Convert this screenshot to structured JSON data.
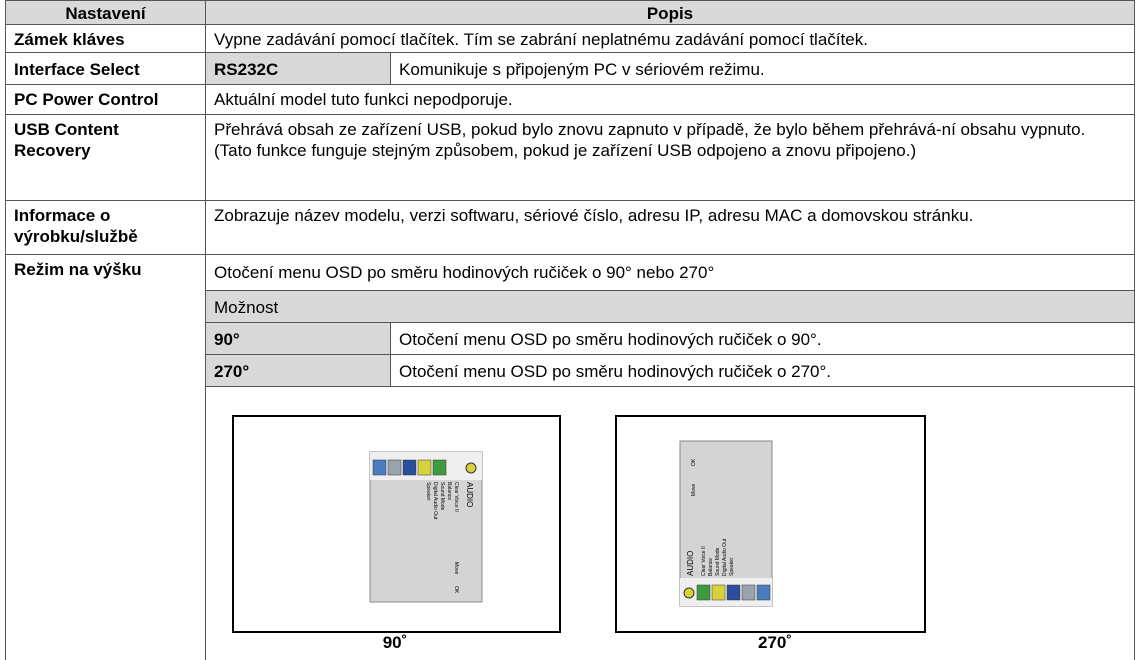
{
  "table": {
    "header": [
      "Nastavení",
      "Popis"
    ],
    "rows": [
      {
        "setting": "Zámek kláves",
        "description": "Vypne zadávání pomocí tlačítek. Tím se zabrání neplatnému zadávání pomocí tlačítek."
      },
      {
        "setting": "Interface Select",
        "option": "RS232C",
        "description": "Komunikuje s připojeným PC v sériovém režimu."
      },
      {
        "setting": "PC Power Control",
        "description": "Aktuální model tuto funkci nepodporuje."
      },
      {
        "setting": "USB Content Recovery",
        "description": "Přehrává obsah ze zařízení USB, pokud bylo znovu zapnuto v případě, že bylo během přehrává-ní obsahu vypnuto. (Tato funkce funguje stejným způsobem, pokud je zařízení USB odpojeno a znovu připojeno.)"
      },
      {
        "setting": "Informace o výrobku/službě",
        "description": "Zobrazuje název modelu, verzi softwaru, sériové číslo, adresu IP, adresu MAC a domovskou stránku."
      },
      {
        "setting": "Režim na výšku",
        "description": "Otočení menu OSD po směru hodinových ručiček o 90° nebo 270°",
        "options_header": "Možnost",
        "options": [
          {
            "label": "90°",
            "description": "Otočení menu OSD po směru hodinových ručiček o 90°."
          },
          {
            "label": "270°",
            "description": "Otočení menu OSD po směru hodinových ručiček o 270°."
          }
        ],
        "osd_menu": {
          "title": "AUDIO",
          "items": [
            "Clear Voice II",
            "Balance",
            "Sound Mode",
            "Digital Audio Out",
            "Speaker"
          ],
          "move": "Move",
          "ok": "OK"
        },
        "figure_captions": [
          "90˚",
          "270˚"
        ]
      }
    ]
  }
}
